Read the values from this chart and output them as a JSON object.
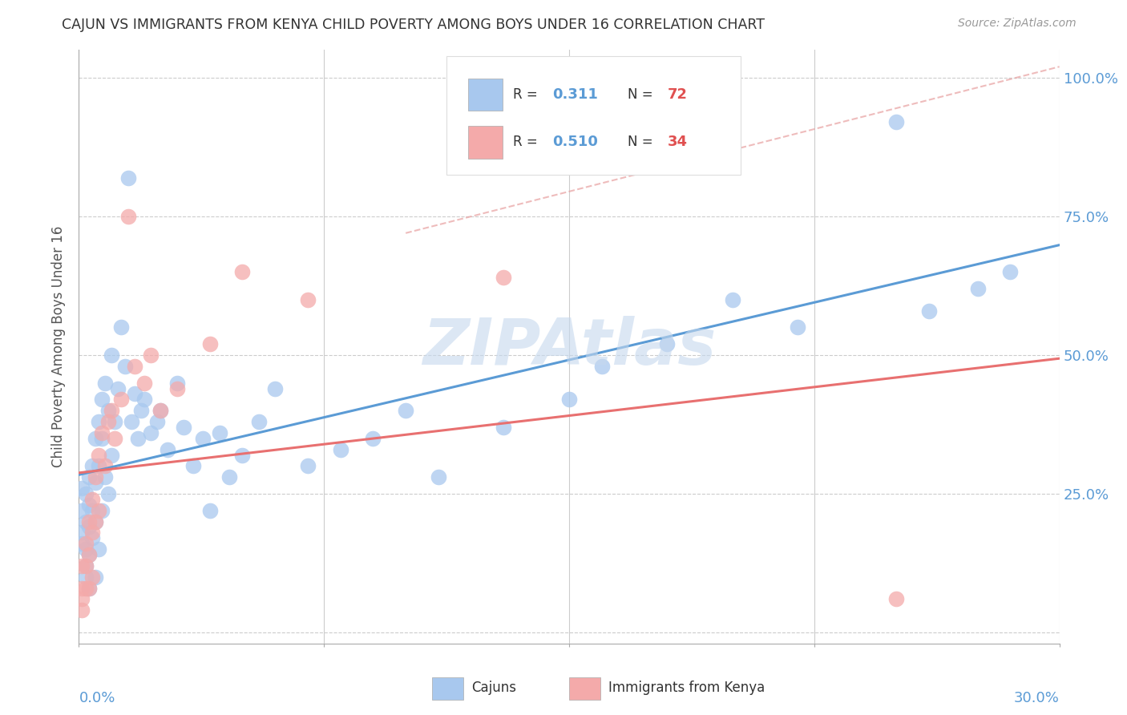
{
  "title": "CAJUN VS IMMIGRANTS FROM KENYA CHILD POVERTY AMONG BOYS UNDER 16 CORRELATION CHART",
  "source": "Source: ZipAtlas.com",
  "ylabel": "Child Poverty Among Boys Under 16",
  "yticks": [
    0.0,
    0.25,
    0.5,
    0.75,
    1.0
  ],
  "ytick_labels": [
    "",
    "25.0%",
    "50.0%",
    "75.0%",
    "100.0%"
  ],
  "xmin": 0.0,
  "xmax": 0.3,
  "ymin": 0.0,
  "ymax": 1.05,
  "cajun_R": 0.311,
  "cajun_N": 72,
  "kenya_R": 0.51,
  "kenya_N": 34,
  "cajun_color": "#A8C8EE",
  "kenya_color": "#F4AAAA",
  "cajun_line_color": "#5B9BD5",
  "kenya_line_color": "#E87070",
  "ref_line_color": "#DDAAAA",
  "watermark": "ZIPAtlas",
  "watermark_color": "#C5D8EE",
  "legend_label_cajun": "Cajuns",
  "legend_label_kenya": "Immigrants from Kenya",
  "cajun_x": [
    0.001,
    0.001,
    0.001,
    0.001,
    0.002,
    0.002,
    0.002,
    0.002,
    0.002,
    0.003,
    0.003,
    0.003,
    0.003,
    0.003,
    0.004,
    0.004,
    0.004,
    0.005,
    0.005,
    0.005,
    0.005,
    0.006,
    0.006,
    0.006,
    0.007,
    0.007,
    0.007,
    0.008,
    0.008,
    0.009,
    0.009,
    0.01,
    0.01,
    0.011,
    0.012,
    0.013,
    0.014,
    0.015,
    0.016,
    0.017,
    0.018,
    0.019,
    0.02,
    0.022,
    0.024,
    0.025,
    0.027,
    0.03,
    0.032,
    0.035,
    0.038,
    0.04,
    0.043,
    0.046,
    0.05,
    0.055,
    0.06,
    0.07,
    0.08,
    0.09,
    0.1,
    0.11,
    0.13,
    0.15,
    0.16,
    0.18,
    0.2,
    0.22,
    0.25,
    0.26,
    0.275,
    0.285
  ],
  "cajun_y": [
    0.26,
    0.22,
    0.18,
    0.16,
    0.25,
    0.2,
    0.15,
    0.12,
    0.1,
    0.28,
    0.23,
    0.19,
    0.14,
    0.08,
    0.3,
    0.22,
    0.17,
    0.35,
    0.27,
    0.2,
    0.1,
    0.38,
    0.3,
    0.15,
    0.42,
    0.35,
    0.22,
    0.45,
    0.28,
    0.4,
    0.25,
    0.5,
    0.32,
    0.38,
    0.44,
    0.55,
    0.48,
    0.82,
    0.38,
    0.43,
    0.35,
    0.4,
    0.42,
    0.36,
    0.38,
    0.4,
    0.33,
    0.45,
    0.37,
    0.3,
    0.35,
    0.22,
    0.36,
    0.28,
    0.32,
    0.38,
    0.44,
    0.3,
    0.33,
    0.35,
    0.4,
    0.28,
    0.37,
    0.42,
    0.48,
    0.52,
    0.6,
    0.55,
    0.92,
    0.58,
    0.62,
    0.65
  ],
  "kenya_x": [
    0.001,
    0.001,
    0.001,
    0.001,
    0.002,
    0.002,
    0.002,
    0.003,
    0.003,
    0.003,
    0.004,
    0.004,
    0.004,
    0.005,
    0.005,
    0.006,
    0.006,
    0.007,
    0.008,
    0.009,
    0.01,
    0.011,
    0.013,
    0.015,
    0.017,
    0.02,
    0.022,
    0.025,
    0.03,
    0.04,
    0.05,
    0.07,
    0.13,
    0.25
  ],
  "kenya_y": [
    0.12,
    0.08,
    0.06,
    0.04,
    0.16,
    0.12,
    0.08,
    0.2,
    0.14,
    0.08,
    0.24,
    0.18,
    0.1,
    0.28,
    0.2,
    0.32,
    0.22,
    0.36,
    0.3,
    0.38,
    0.4,
    0.35,
    0.42,
    0.75,
    0.48,
    0.45,
    0.5,
    0.4,
    0.44,
    0.52,
    0.65,
    0.6,
    0.64,
    0.06
  ]
}
